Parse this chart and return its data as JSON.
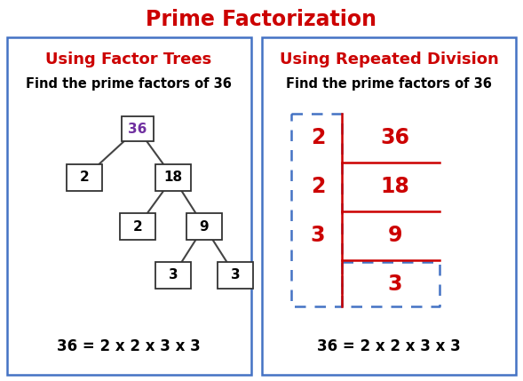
{
  "title": "Prime Factorization",
  "title_color": "#cc0000",
  "title_fontsize": 17,
  "left_heading": "Using Factor Trees",
  "left_heading_color": "#cc0000",
  "right_heading": "Using Repeated Division",
  "right_heading_color": "#cc0000",
  "subheading": "Find the prime factors of 36",
  "subheading_color": "#000000",
  "equation": "36 = 2 x 2 x 3 x 3",
  "equation_color": "#000000",
  "box_border_color": "#4472c4",
  "tree_line_color": "#444444",
  "node_36_color": "#7030a0",
  "node_other_color": "#000000",
  "division_color": "#cc0000",
  "dashed_box_color": "#4472c4",
  "bg_color": "#ffffff",
  "fig_width": 5.89,
  "fig_height": 4.29,
  "dpi": 100
}
